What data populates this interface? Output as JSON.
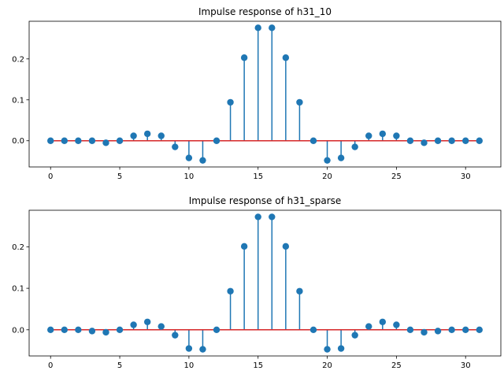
{
  "chart_data": [
    {
      "type": "stem",
      "title": "Impulse response of h31_10",
      "x": [
        0,
        1,
        2,
        3,
        4,
        5,
        6,
        7,
        8,
        9,
        10,
        11,
        12,
        13,
        14,
        15,
        16,
        17,
        18,
        19,
        20,
        21,
        22,
        23,
        24,
        25,
        26,
        27,
        28,
        29,
        30,
        31
      ],
      "values": [
        0,
        0,
        0,
        0,
        -0.005,
        0,
        0.012,
        0.017,
        0.012,
        -0.015,
        -0.042,
        -0.048,
        0,
        0.094,
        0.203,
        0.276,
        0.276,
        0.203,
        0.094,
        0,
        -0.048,
        -0.042,
        -0.015,
        0.012,
        0.017,
        0.012,
        0,
        -0.005,
        0,
        0,
        0,
        0
      ],
      "xlim": [
        -1.55,
        32.55
      ],
      "ylim": [
        -0.064,
        0.292
      ],
      "xticks": [
        "0",
        "5",
        "10",
        "15",
        "20",
        "25",
        "30"
      ],
      "yticks": [
        "0.0",
        "0.1",
        "0.2"
      ],
      "grid": false
    },
    {
      "type": "stem",
      "title": "Impulse response of h31_sparse",
      "x": [
        0,
        1,
        2,
        3,
        4,
        5,
        6,
        7,
        8,
        9,
        10,
        11,
        12,
        13,
        14,
        15,
        16,
        17,
        18,
        19,
        20,
        21,
        22,
        23,
        24,
        25,
        26,
        27,
        28,
        29,
        30,
        31
      ],
      "values": [
        0,
        0,
        0,
        -0.003,
        -0.006,
        0,
        0.012,
        0.019,
        0.008,
        -0.013,
        -0.045,
        -0.047,
        0,
        0.093,
        0.201,
        0.272,
        0.272,
        0.201,
        0.093,
        0,
        -0.047,
        -0.045,
        -0.013,
        0.008,
        0.019,
        0.012,
        0,
        -0.006,
        -0.003,
        0,
        0,
        0
      ],
      "xlim": [
        -1.55,
        32.55
      ],
      "ylim": [
        -0.063,
        0.288
      ],
      "xticks": [
        "0",
        "5",
        "10",
        "15",
        "20",
        "25",
        "30"
      ],
      "yticks": [
        "0.0",
        "0.1",
        "0.2"
      ],
      "grid": false
    }
  ],
  "colors": {
    "stem": "#1f77b4",
    "baseline": "#d62728"
  }
}
